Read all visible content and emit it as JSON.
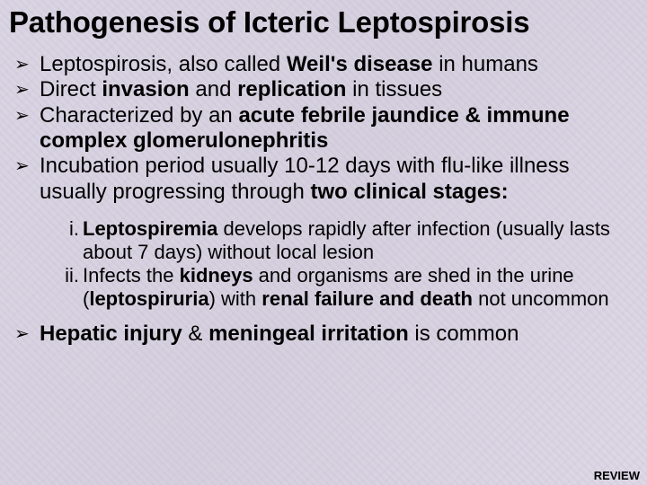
{
  "title": "Pathogenesis of Icteric Leptospirosis",
  "bullets": {
    "b1_pre": "Leptospirosis, also called ",
    "b1_bold": "Weil's disease",
    "b1_post": " in humans",
    "b2_pre": "Direct ",
    "b2_bold1": "invasion",
    "b2_mid": " and ",
    "b2_bold2": "replication",
    "b2_post": " in tissues",
    "b3_pre": "Characterized by an ",
    "b3_bold": "acute febrile jaundice & immune complex glomerulonephritis",
    "b4_pre": "Incubation period usually 10-12 days with flu-like illness usually progressing through ",
    "b4_bold": "two clinical stages:",
    "b5_pre": "",
    "b5_bold1": "Hepatic injury",
    "b5_mid": " & ",
    "b5_bold2": "meningeal irritation",
    "b5_post": " is common"
  },
  "sub": {
    "s1_bold1": "Leptospiremia",
    "s1_post": " develops rapidly after infection (usually lasts about 7 days) without local lesion",
    "s2_pre": "Infects the ",
    "s2_bold1": "kidneys",
    "s2_mid1": " and organisms are shed in the urine (",
    "s2_bold2": "leptospiruria",
    "s2_mid2": ") with ",
    "s2_bold3": "renal failure and death",
    "s2_post": " not uncommon"
  },
  "footer": "REVIEW",
  "arrow_glyph": "➢"
}
